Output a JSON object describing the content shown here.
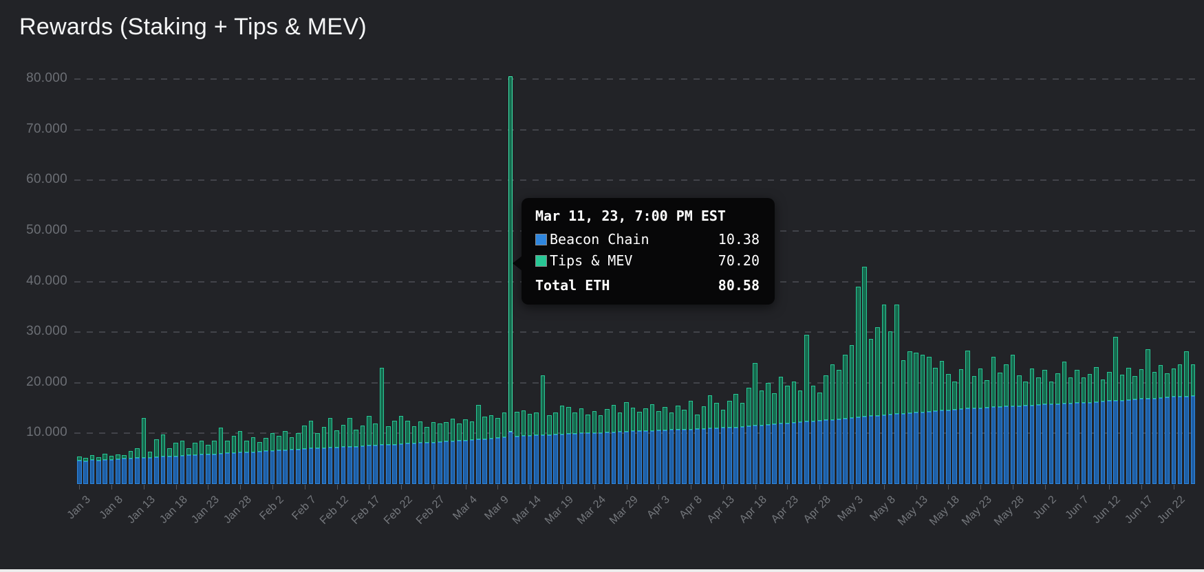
{
  "page": {
    "title": "Rewards (Staking + Tips & MEV)",
    "background": "#222327"
  },
  "chart_data": {
    "type": "bar",
    "stacked": true,
    "title": "Rewards (Staking + Tips & MEV)",
    "xlabel": "",
    "ylabel": "",
    "unit": "ETH",
    "legend_position": "tooltip-only",
    "grid": "dashed-horizontal",
    "y_axis": {
      "tick_values": [
        10,
        20,
        30,
        40,
        50,
        60,
        70,
        80
      ],
      "tick_labels": [
        "10.000",
        "20.000",
        "30.000",
        "40.000",
        "50.000",
        "60.000",
        "70.000",
        "80.000"
      ],
      "min": 0,
      "max": 83.5
    },
    "x_axis": {
      "tick_every": 5,
      "tick_labels": [
        "Jan 3",
        "Jan 8",
        "Jan 13",
        "Jan 18",
        "Jan 23",
        "Jan 28",
        "Feb 2",
        "Feb 7",
        "Feb 12",
        "Feb 17",
        "Feb 22",
        "Feb 27",
        "Mar 4",
        "Mar 9",
        "Mar 14",
        "Mar 19",
        "Mar 24",
        "Mar 29",
        "Apr 3",
        "Apr 8",
        "Apr 13",
        "Apr 18",
        "Apr 23",
        "Apr 28",
        "May 3",
        "May 8",
        "May 13",
        "May 18",
        "May 23",
        "May 28",
        "Jun 2",
        "Jun 7",
        "Jun 12",
        "Jun 17",
        "Jun 22"
      ]
    },
    "series": [
      {
        "name": "Beacon Chain",
        "stroke": "#2f86de",
        "fill": "#1e5fa6"
      },
      {
        "name": "Tips & MEV",
        "stroke": "#28c795",
        "fill": "#166a4e"
      }
    ],
    "points_format": "[beacon_chain_eth, tips_and_mev_eth] per day, daily Jan 3 - Jun 25",
    "points": [
      [
        4.6,
        0.9
      ],
      [
        4.5,
        0.6
      ],
      [
        4.7,
        1.0
      ],
      [
        4.6,
        0.7
      ],
      [
        4.8,
        1.2
      ],
      [
        4.8,
        0.8
      ],
      [
        4.9,
        1.0
      ],
      [
        5.0,
        0.7
      ],
      [
        5.0,
        1.5
      ],
      [
        5.1,
        2.0
      ],
      [
        5.2,
        7.8
      ],
      [
        5.2,
        1.2
      ],
      [
        5.3,
        3.5
      ],
      [
        5.4,
        4.4
      ],
      [
        5.5,
        1.6
      ],
      [
        5.5,
        2.6
      ],
      [
        5.6,
        3.0
      ],
      [
        5.7,
        1.4
      ],
      [
        5.7,
        2.4
      ],
      [
        5.8,
        2.8
      ],
      [
        5.9,
        1.8
      ],
      [
        5.9,
        2.7
      ],
      [
        6.0,
        5.1
      ],
      [
        6.1,
        2.5
      ],
      [
        6.1,
        3.4
      ],
      [
        6.2,
        4.3
      ],
      [
        6.3,
        2.2
      ],
      [
        6.3,
        3.0
      ],
      [
        6.4,
        1.9
      ],
      [
        6.5,
        2.6
      ],
      [
        6.5,
        3.6
      ],
      [
        6.6,
        2.9
      ],
      [
        6.7,
        3.8
      ],
      [
        6.8,
        2.4
      ],
      [
        6.8,
        3.2
      ],
      [
        6.9,
        4.6
      ],
      [
        7.0,
        5.5
      ],
      [
        7.0,
        3.1
      ],
      [
        7.1,
        4.2
      ],
      [
        7.2,
        5.9
      ],
      [
        7.2,
        3.4
      ],
      [
        7.3,
        4.4
      ],
      [
        7.4,
        5.6
      ],
      [
        7.4,
        3.3
      ],
      [
        7.5,
        4.1
      ],
      [
        7.6,
        5.8
      ],
      [
        7.6,
        4.3
      ],
      [
        7.7,
        15.2
      ],
      [
        7.8,
        3.6
      ],
      [
        7.8,
        4.7
      ],
      [
        7.9,
        5.6
      ],
      [
        8.0,
        4.5
      ],
      [
        8.0,
        3.4
      ],
      [
        8.1,
        4.3
      ],
      [
        8.2,
        3.1
      ],
      [
        8.2,
        4.0
      ],
      [
        8.3,
        3.6
      ],
      [
        8.4,
        3.8
      ],
      [
        8.4,
        4.5
      ],
      [
        8.5,
        3.4
      ],
      [
        8.6,
        4.2
      ],
      [
        8.7,
        3.6
      ],
      [
        8.8,
        6.8
      ],
      [
        8.9,
        4.4
      ],
      [
        9.0,
        4.6
      ],
      [
        9.1,
        3.9
      ],
      [
        9.2,
        5.0
      ],
      [
        10.38,
        70.2
      ],
      [
        9.4,
        4.9
      ],
      [
        9.5,
        5.1
      ],
      [
        9.5,
        4.3
      ],
      [
        9.6,
        4.6
      ],
      [
        9.7,
        11.8
      ],
      [
        9.7,
        3.9
      ],
      [
        9.8,
        4.4
      ],
      [
        9.8,
        5.7
      ],
      [
        9.9,
        5.3
      ],
      [
        9.9,
        4.2
      ],
      [
        10.0,
        4.9
      ],
      [
        10.0,
        3.7
      ],
      [
        10.1,
        4.3
      ],
      [
        10.1,
        3.5
      ],
      [
        10.2,
        4.6
      ],
      [
        10.2,
        5.4
      ],
      [
        10.3,
        3.8
      ],
      [
        10.3,
        5.9
      ],
      [
        10.4,
        4.7
      ],
      [
        10.4,
        3.9
      ],
      [
        10.5,
        4.4
      ],
      [
        10.5,
        5.2
      ],
      [
        10.6,
        3.8
      ],
      [
        10.6,
        4.6
      ],
      [
        10.7,
        3.5
      ],
      [
        10.7,
        4.8
      ],
      [
        10.8,
        3.9
      ],
      [
        10.8,
        5.6
      ],
      [
        10.9,
        2.8
      ],
      [
        10.9,
        4.5
      ],
      [
        11.0,
        6.5
      ],
      [
        11.0,
        5.0
      ],
      [
        11.1,
        3.6
      ],
      [
        11.1,
        5.4
      ],
      [
        11.2,
        6.6
      ],
      [
        11.3,
        4.8
      ],
      [
        11.4,
        7.6
      ],
      [
        11.5,
        12.4
      ],
      [
        11.6,
        6.9
      ],
      [
        11.7,
        8.3
      ],
      [
        11.8,
        6.1
      ],
      [
        11.9,
        9.3
      ],
      [
        12.0,
        7.4
      ],
      [
        12.1,
        8.1
      ],
      [
        12.2,
        6.3
      ],
      [
        12.3,
        17.2
      ],
      [
        12.4,
        7.1
      ],
      [
        12.5,
        5.6
      ],
      [
        12.6,
        8.9
      ],
      [
        12.7,
        10.9
      ],
      [
        12.8,
        9.7
      ],
      [
        12.9,
        12.6
      ],
      [
        13.0,
        14.5
      ],
      [
        13.2,
        25.8
      ],
      [
        13.3,
        29.7
      ],
      [
        13.4,
        15.3
      ],
      [
        13.5,
        17.5
      ],
      [
        13.6,
        21.9
      ],
      [
        13.7,
        16.5
      ],
      [
        13.8,
        21.7
      ],
      [
        13.9,
        10.6
      ],
      [
        14.0,
        12.2
      ],
      [
        14.1,
        11.9
      ],
      [
        14.2,
        11.4
      ],
      [
        14.3,
        10.9
      ],
      [
        14.4,
        8.6
      ],
      [
        14.5,
        9.8
      ],
      [
        14.6,
        7.2
      ],
      [
        14.7,
        5.6
      ],
      [
        14.8,
        7.9
      ],
      [
        14.9,
        11.5
      ],
      [
        15.0,
        6.3
      ],
      [
        15.0,
        7.8
      ],
      [
        15.1,
        5.4
      ],
      [
        15.2,
        9.9
      ],
      [
        15.2,
        6.8
      ],
      [
        15.3,
        8.4
      ],
      [
        15.4,
        10.1
      ],
      [
        15.4,
        6.1
      ],
      [
        15.5,
        4.8
      ],
      [
        15.5,
        7.3
      ],
      [
        15.6,
        5.4
      ],
      [
        15.7,
        6.8
      ],
      [
        15.7,
        4.6
      ],
      [
        15.8,
        6.1
      ],
      [
        15.9,
        8.3
      ],
      [
        15.9,
        5.2
      ],
      [
        16.0,
        6.6
      ],
      [
        16.1,
        4.9
      ],
      [
        16.1,
        5.7
      ],
      [
        16.2,
        6.9
      ],
      [
        16.3,
        4.4
      ],
      [
        16.4,
        5.8
      ],
      [
        16.5,
        12.6
      ],
      [
        16.5,
        5.1
      ],
      [
        16.6,
        6.3
      ],
      [
        16.7,
        4.7
      ],
      [
        16.8,
        5.9
      ],
      [
        16.9,
        9.8
      ],
      [
        16.9,
        5.3
      ],
      [
        17.0,
        6.5
      ],
      [
        17.1,
        4.8
      ],
      [
        17.2,
        5.6
      ],
      [
        17.2,
        6.4
      ],
      [
        17.3,
        8.9
      ],
      [
        17.4,
        6.2
      ]
    ]
  },
  "tooltip": {
    "title": "Mar 11, 23, 7:00 PM EST",
    "rows": [
      {
        "label": "Beacon Chain",
        "value": "10.38",
        "color": "#2f86de"
      },
      {
        "label": "Tips & MEV",
        "value": "70.20",
        "color": "#28c795"
      }
    ],
    "total_label": "Total ETH",
    "total_value": "80.58",
    "highlight_index": 67,
    "background": "#070708"
  }
}
